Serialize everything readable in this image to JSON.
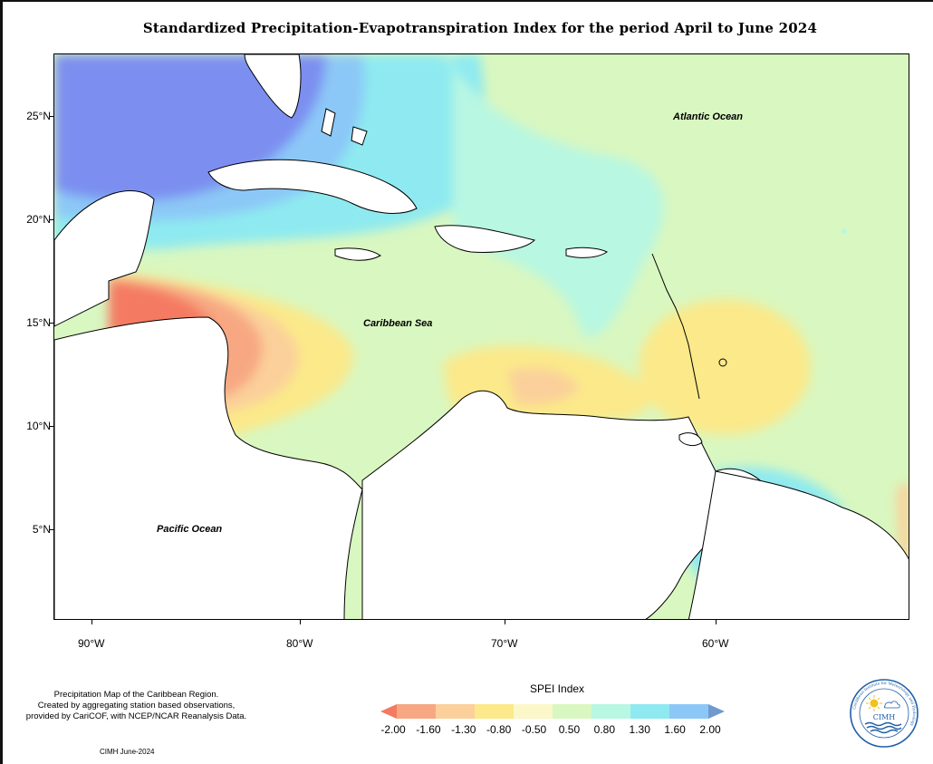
{
  "title": "Standardized Precipitation-Evapotranspiration Index for the period April to June 2024",
  "map": {
    "latitude_labels": [
      "25°N",
      "20°N",
      "15°N",
      "10°N",
      "5°N"
    ],
    "longitude_labels": [
      "90°W",
      "80°W",
      "70°W",
      "60°W"
    ],
    "ocean_labels": {
      "atlantic": "Atlantic Ocean",
      "caribbean": "Caribbean Sea",
      "pacific": "Pacific Ocean"
    }
  },
  "note": {
    "line1": "Precipitation Map of the Caribbean Region.",
    "line2": "Created by aggregating station based observations,",
    "line3": "provided by CariCOF, with NCEP/NCAR Reanalysis Data."
  },
  "footer": "CIMH June-2024",
  "legend": {
    "title": "SPEI Index",
    "ticks": [
      "-2.00",
      "-1.60",
      "-1.30",
      "-0.80",
      "-0.50",
      "0.50",
      "0.80",
      "1.30",
      "1.60",
      "2.00"
    ],
    "colors": [
      "#f47a62",
      "#f7a882",
      "#fbd09a",
      "#fbe98a",
      "#fbf7c8",
      "#d9f7c0",
      "#b8f7e2",
      "#8eeaf0",
      "#8cc8f7",
      "#6f9ad0"
    ]
  },
  "logo": {
    "name": "CIMH",
    "ring_text": "Caribbean Institute for Meteorology and Hydrology"
  }
}
